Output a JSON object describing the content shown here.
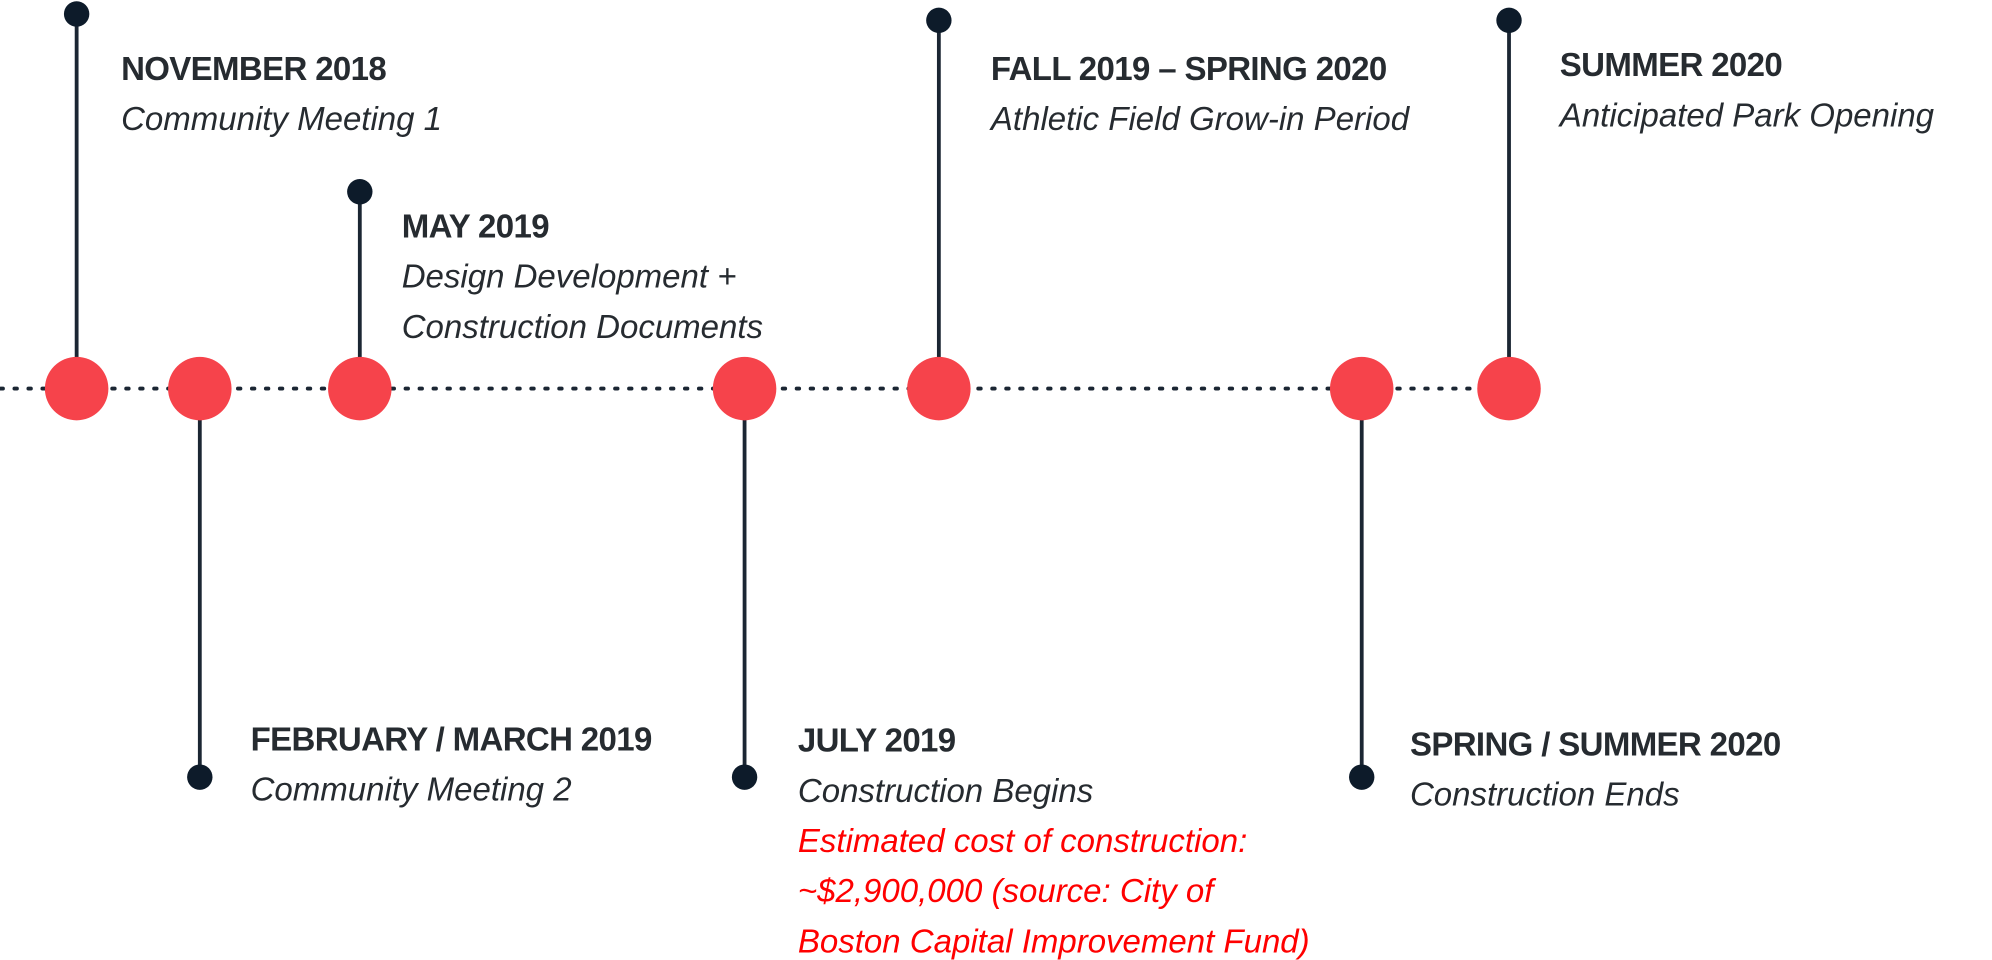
{
  "events": [
    {
      "date": "NOVEMBER 2018",
      "description": [
        "Community Meeting 1"
      ]
    },
    {
      "date": "FEBRUARY / MARCH 2019",
      "description": [
        "Community Meeting 2"
      ]
    },
    {
      "date": "MAY 2019",
      "description": [
        "Design Development +",
        "Construction Documents"
      ]
    },
    {
      "date": "JULY 2019",
      "description": [
        "Construction Begins"
      ],
      "note": [
        "Estimated cost of construction:",
        "~$2,900,000 (source: City of",
        "Boston Capital Improvement Fund)"
      ]
    },
    {
      "date": "FALL 2019 – SPRING 2020",
      "description": [
        "Athletic Field Grow-in Period"
      ]
    },
    {
      "date": "SPRING / SUMMER 2020",
      "description": [
        "Construction Ends"
      ]
    },
    {
      "date": "SUMMER 2020",
      "description": [
        "Anticipated Park Opening"
      ]
    }
  ]
}
